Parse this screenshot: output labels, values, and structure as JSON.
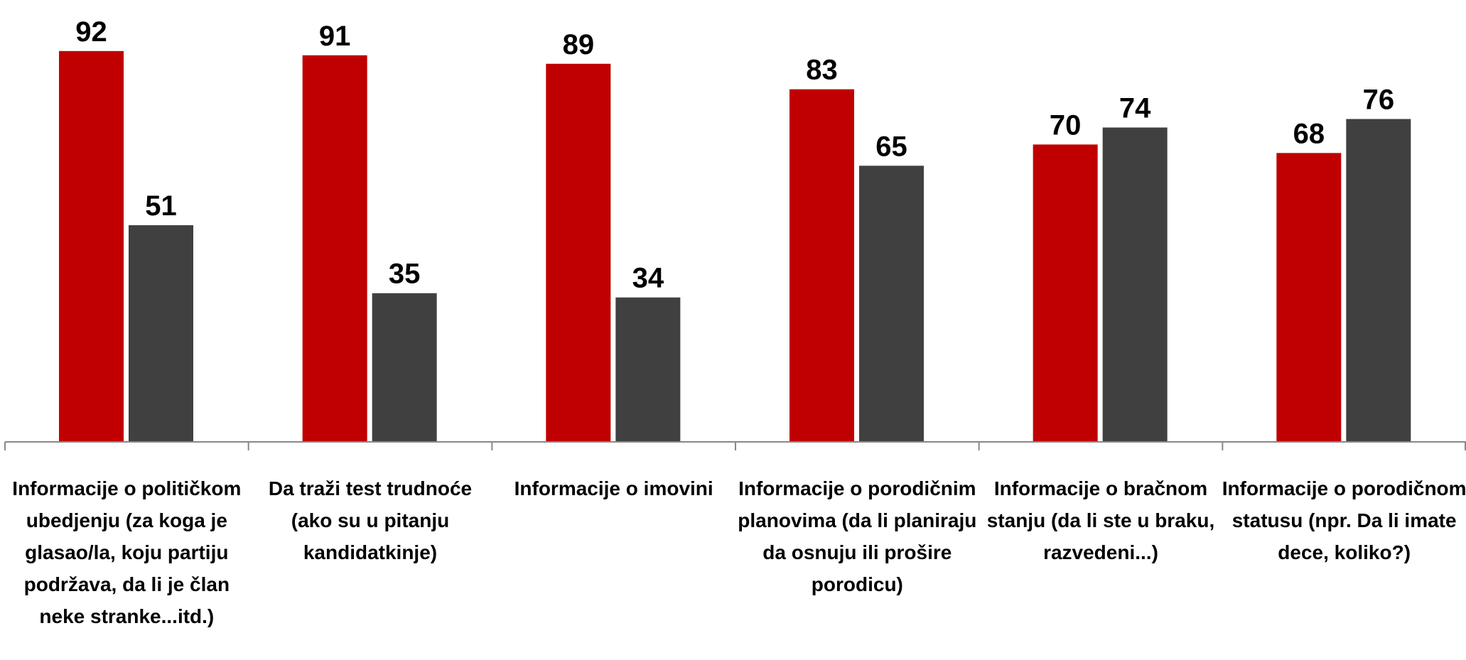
{
  "chart_data": {
    "type": "bar",
    "categories": [
      "Informacije o političkom ubedjenju (za koga je glasao/la, koju partiju podržava, da li je član neke stranke...itd.)",
      "Da traži test trudnoće (ako su u pitanju kandidatkinje)",
      "Informacije o imovini",
      "Informacije o porodičnim planovima (da li planiraju da osnuju ili prošire porodicu)",
      "Informacije o bračnom stanju (da li ste u braku, razvedeni...)",
      "Informacije o porodičnom statusu (npr. Da li imate dece, koliko?)"
    ],
    "series": [
      {
        "color": "#c00000",
        "values": [
          92,
          91,
          89,
          83,
          70,
          68
        ]
      },
      {
        "color": "#404040",
        "values": [
          51,
          35,
          34,
          65,
          74,
          76
        ]
      }
    ],
    "ylim": [
      0,
      100
    ]
  }
}
